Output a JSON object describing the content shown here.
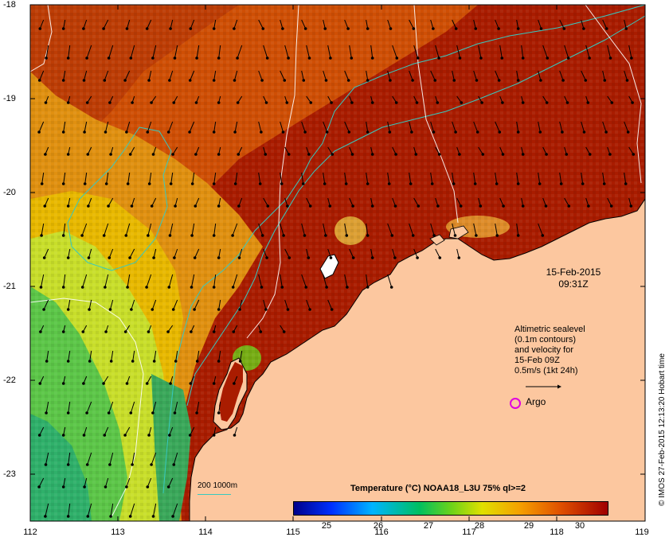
{
  "map": {
    "axes": {
      "lat_ticks": [
        "-18",
        "-19",
        "-20",
        "-21",
        "-22",
        "-23"
      ],
      "lon_ticks": [
        "112",
        "113",
        "114",
        "115",
        "116",
        "117",
        "118",
        "119"
      ]
    },
    "timestamp_date": "15-Feb-2015",
    "timestamp_time": "09:31Z",
    "legend_lines": [
      "Altimetric sealevel",
      "(0.1m contours)",
      "and velocity for",
      "15-Feb 09Z",
      "0.5m/s (1kt 24h)"
    ],
    "argo_label": "Argo",
    "bathy_label": "200  1000m",
    "colorbar": {
      "title": "Temperature (°C) NOAA18_L3U 75% ql>=2",
      "ticks": [
        "25",
        "26",
        "27",
        "28",
        "29",
        "30"
      ]
    },
    "watermark": "© IMOS 27-Feb-2015 12:13:20 Hobart time",
    "colors": {
      "land": "#fcc79f",
      "ocean_hot": "#a91c00",
      "ocean_warm": "#cf4f05",
      "ocean_mid": "#e8a007",
      "ocean_cool": "#b9e237",
      "ocean_cold": "#46c24a",
      "contour": "#36c9c0"
    }
  }
}
